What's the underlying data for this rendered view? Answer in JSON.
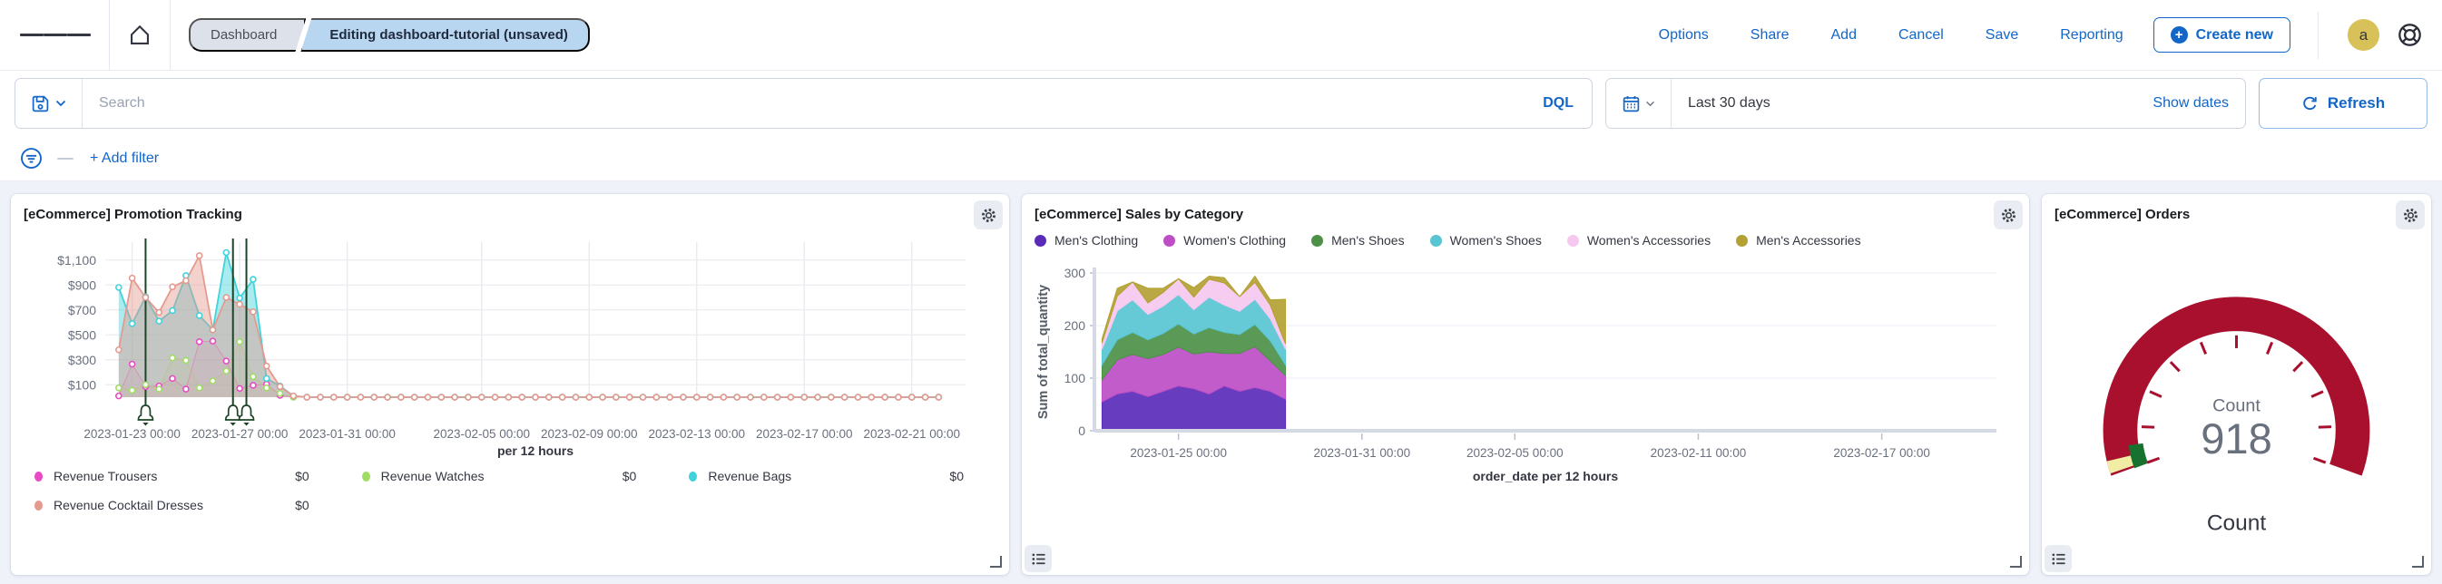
{
  "colors": {
    "accent_blue": "#1266c7",
    "breadcrumb_active_bg": "#b9d6f1",
    "breadcrumb_bg": "#dde1ea",
    "avatar_bg": "#d8c158",
    "page_bg": "#eff2f9",
    "gauge_red": "#a8102d",
    "gauge_green": "#17722f",
    "gauge_yellow": "#f2eda4",
    "annotation_green": "#1d4428"
  },
  "icons": {
    "menu-icon": "hamburger bars",
    "home-icon": "house outline",
    "save-icon": "floppy disk",
    "chevron-down-icon": "v",
    "calendar-icon": "calendar grid",
    "refresh-icon": "circular arrow",
    "filter-icon": "circle with funnel lines",
    "plus-icon": "+",
    "help-icon": "life ring",
    "gear-icon": "cog",
    "legend-list-icon": "bulleted list",
    "resize-corner-icon": "corner bracket",
    "bell-icon": "annotation bell"
  },
  "topbar": {
    "breadcrumb1": "Dashboard",
    "breadcrumb2": "Editing dashboard-tutorial (unsaved)",
    "links": [
      "Options",
      "Share",
      "Add",
      "Cancel",
      "Save",
      "Reporting"
    ],
    "create_new": "Create new",
    "avatar_initial": "a"
  },
  "search_row": {
    "placeholder": "Search",
    "dql": "DQL",
    "time_range": "Last 30 days",
    "show_dates": "Show dates",
    "refresh": "Refresh"
  },
  "filter_row": {
    "add_filter": "+ Add filter"
  },
  "panels": {
    "promotion": {
      "title": "[eCommerce] Promotion Tracking",
      "legend": [
        {
          "label": "Revenue Trousers",
          "value": "$0",
          "color": "#e84bc4"
        },
        {
          "label": "Revenue Watches",
          "value": "$0",
          "color": "#a0dd65"
        },
        {
          "label": "Revenue Bags",
          "value": "$0",
          "color": "#40d3d9"
        },
        {
          "label": "Revenue Cocktail Dresses",
          "value": "$0",
          "color": "#e59a8f"
        }
      ]
    },
    "sales": {
      "title": "[eCommerce] Sales by Category",
      "legend": [
        {
          "label": "Men's Clothing",
          "color": "#5a2bb8"
        },
        {
          "label": "Women's Clothing",
          "color": "#bd4ec5"
        },
        {
          "label": "Men's Shoes",
          "color": "#4d9148"
        },
        {
          "label": "Women's Shoes",
          "color": "#58c5d3"
        },
        {
          "label": "Women's Accessories",
          "color": "#f6c8f0"
        },
        {
          "label": "Men's Accessories",
          "color": "#b3a133"
        }
      ]
    },
    "orders": {
      "title": "[eCommerce] Orders"
    }
  },
  "chart_data": [
    {
      "panel": "promotion-tracking",
      "type": "area",
      "title": "[eCommerce] Promotion Tracking",
      "xlabel": "per 12 hours",
      "ylim": [
        0,
        1200
      ],
      "y_ticks": [
        100,
        300,
        500,
        700,
        900,
        1100
      ],
      "y_tick_labels": [
        "$100",
        "$300",
        "$500",
        "$700",
        "$900",
        "$1,100"
      ],
      "x_domain": [
        "2023-01-22 00:00",
        "2023-02-23 00:00"
      ],
      "x_ticks": [
        "2023-01-23 00:00",
        "2023-01-27 00:00",
        "2023-01-31 00:00",
        "2023-02-05 00:00",
        "2023-02-09 00:00",
        "2023-02-13 00:00",
        "2023-02-17 00:00",
        "2023-02-21 00:00"
      ],
      "x_start": "2023-01-22 12:00",
      "x_step_hours": 12,
      "grid": true,
      "legend_position": "bottom",
      "series": [
        {
          "name": "Revenue Bags",
          "color": "#40d3d9",
          "area": true,
          "values": [
            880,
            590,
            805,
            610,
            695,
            975,
            655,
            540,
            1160,
            795,
            945,
            150,
            90,
            10,
            0,
            0,
            0,
            0,
            0,
            0,
            0,
            0,
            0,
            0,
            0,
            0,
            0,
            0,
            0,
            0,
            0,
            0,
            0,
            0,
            0,
            0,
            0,
            0,
            0,
            0,
            0,
            0,
            0,
            0,
            0,
            0,
            0,
            0,
            0,
            0,
            0,
            0,
            0,
            0,
            0,
            0,
            0,
            0,
            0,
            0,
            0,
            0
          ]
        },
        {
          "name": "Revenue Trousers",
          "color": "#e84bc4",
          "area": false,
          "values": [
            10,
            265,
            85,
            90,
            150,
            65,
            445,
            450,
            290,
            70,
            95,
            105,
            15,
            0,
            0,
            0,
            0,
            0,
            0,
            0,
            0,
            0,
            0,
            0,
            0,
            0,
            0,
            0,
            0,
            0,
            0,
            0,
            0,
            0,
            0,
            0,
            0,
            0,
            0,
            0,
            0,
            0,
            0,
            0,
            0,
            0,
            0,
            0,
            0,
            0,
            0,
            0,
            0,
            0,
            0,
            0,
            0,
            0,
            0,
            0,
            0,
            0
          ]
        },
        {
          "name": "Revenue Watches",
          "color": "#a0dd65",
          "area": false,
          "values": [
            75,
            55,
            100,
            65,
            315,
            295,
            75,
            130,
            210,
            445,
            165,
            75,
            30,
            0,
            0,
            0,
            0,
            0,
            0,
            0,
            0,
            0,
            0,
            0,
            0,
            0,
            0,
            0,
            0,
            0,
            0,
            0,
            0,
            0,
            0,
            0,
            0,
            0,
            0,
            0,
            0,
            0,
            0,
            0,
            0,
            0,
            0,
            0,
            0,
            0,
            0,
            0,
            0,
            0,
            0,
            0,
            0,
            0,
            0,
            0,
            0,
            0
          ]
        },
        {
          "name": "Revenue Cocktail Dresses",
          "color": "#e59a8f",
          "area": true,
          "values": [
            380,
            955,
            800,
            680,
            885,
            935,
            1135,
            540,
            800,
            745,
            685,
            250,
            85,
            10,
            0,
            0,
            0,
            0,
            0,
            0,
            0,
            0,
            0,
            0,
            0,
            0,
            0,
            0,
            0,
            0,
            0,
            0,
            0,
            0,
            0,
            0,
            0,
            0,
            0,
            0,
            0,
            0,
            0,
            0,
            0,
            0,
            0,
            0,
            0,
            0,
            0,
            0,
            0,
            0,
            0,
            0,
            0,
            0,
            0,
            0,
            0,
            0
          ]
        }
      ],
      "annotations": {
        "color": "#1d4428",
        "x_values": [
          "2023-01-23 12:00",
          "2023-01-26 18:00",
          "2023-01-27 06:00"
        ]
      }
    },
    {
      "panel": "sales-by-category",
      "type": "area",
      "stacked": true,
      "title": "[eCommerce] Sales by Category",
      "xlabel": "order_date per 12 hours",
      "ylabel": "Sum of total_quantity",
      "ylim": [
        0,
        300
      ],
      "y_ticks": [
        0,
        100,
        200,
        300
      ],
      "x_domain": [
        "2023-01-22 06:00",
        "2023-02-20 18:00"
      ],
      "x_ticks": [
        "2023-01-25 00:00",
        "2023-01-31 00:00",
        "2023-02-05 00:00",
        "2023-02-11 00:00",
        "2023-02-17 00:00"
      ],
      "x_start": "2023-01-22 12:00",
      "x_step_hours": 12,
      "grid": true,
      "legend_position": "top",
      "series": [
        {
          "name": "Men's Clothing",
          "color": "#5a2bb8",
          "values": [
            55,
            70,
            75,
            65,
            75,
            85,
            80,
            70,
            85,
            75,
            82,
            75,
            60
          ]
        },
        {
          "name": "Women's Clothing",
          "color": "#bd4ec5",
          "values": [
            42,
            65,
            70,
            72,
            70,
            74,
            66,
            80,
            62,
            72,
            78,
            58,
            45
          ]
        },
        {
          "name": "Men's Shoes",
          "color": "#4d9148",
          "values": [
            28,
            38,
            42,
            36,
            40,
            44,
            38,
            46,
            40,
            36,
            42,
            38,
            20
          ]
        },
        {
          "name": "Women's Shoes",
          "color": "#58c5d3",
          "values": [
            30,
            55,
            62,
            48,
            52,
            56,
            46,
            58,
            52,
            44,
            48,
            42,
            30
          ]
        },
        {
          "name": "Women's Accessories",
          "color": "#f6c8f0",
          "values": [
            12,
            28,
            34,
            22,
            26,
            30,
            24,
            34,
            42,
            28,
            32,
            26,
            10
          ]
        },
        {
          "name": "Men's Accessories",
          "color": "#b3a133",
          "values": [
            8,
            15,
            0,
            28,
            8,
            0,
            18,
            6,
            10,
            0,
            12,
            10,
            85
          ]
        }
      ]
    },
    {
      "panel": "orders",
      "type": "gauge",
      "metric_label": "Count",
      "value": 918,
      "bottom_label": "Count",
      "arc_degrees": 220,
      "band_colors": {
        "main": "#a8102d",
        "start_green": "#17722f",
        "start_yellow": "#f2eda4"
      },
      "tick_count": 11
    }
  ]
}
